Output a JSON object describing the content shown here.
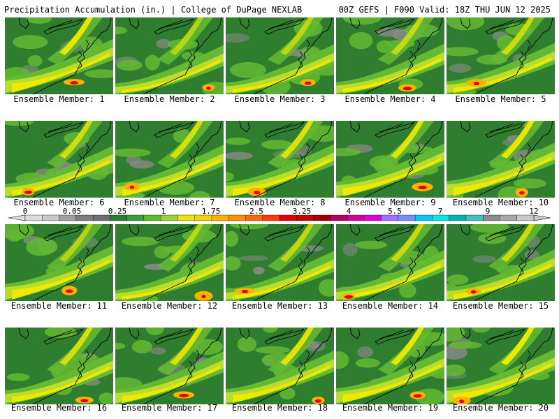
{
  "header": {
    "left": "Precipitation Accumulation (in.) | College of DuPage NEXLAB",
    "right": "00Z GEFS | F090 Valid: 18Z THU JUN 12 2025"
  },
  "members": [
    "Ensemble Member: 1",
    "Ensemble Member: 2",
    "Ensemble Member: 3",
    "Ensemble Member: 4",
    "Ensemble Member: 5",
    "Ensemble Member: 6",
    "Ensemble Member: 7",
    "Ensemble Member: 8",
    "Ensemble Member: 9",
    "Ensemble Member: 10",
    "Ensemble Member: 11",
    "Ensemble Member: 12",
    "Ensemble Member: 13",
    "Ensemble Member: 14",
    "Ensemble Member: 15",
    "Ensemble Member: 16",
    "Ensemble Member: 17",
    "Ensemble Member: 18",
    "Ensemble Member: 19",
    "Ensemble Member: 20"
  ],
  "colorbar": {
    "labels": [
      "0",
      "0.05",
      "0.25",
      "1",
      "1.75",
      "2.5",
      "3.25",
      "4",
      "5.5",
      "7",
      "9",
      "12"
    ],
    "colors": [
      "#dcdcdc",
      "#c8c8c8",
      "#a0a0a0",
      "#7d7d7d",
      "#6e6e6e",
      "#2f7d2f",
      "#3b9a3b",
      "#5fba2e",
      "#9bd430",
      "#e6e800",
      "#f5d400",
      "#ffb000",
      "#ff9000",
      "#ff6a00",
      "#ff3b00",
      "#e80000",
      "#c80000",
      "#a00000",
      "#b0006a",
      "#d000a0",
      "#e000e0",
      "#a070ff",
      "#7090ff",
      "#00c8ff",
      "#00e8e8",
      "#00b4b4",
      "#4cbcbc",
      "#8c8c8c",
      "#a8a8a8",
      "#c8c8c8"
    ]
  },
  "map_colors": {
    "ocean": "#3a8a3a",
    "land": "#2f7d2f",
    "light_green": "#63b932",
    "yellow_green": "#b9dd2a",
    "yellow": "#f0e800",
    "orange": "#ffb000",
    "red": "#e00000",
    "gray": "#8a8a8a",
    "coast": "#000000"
  }
}
